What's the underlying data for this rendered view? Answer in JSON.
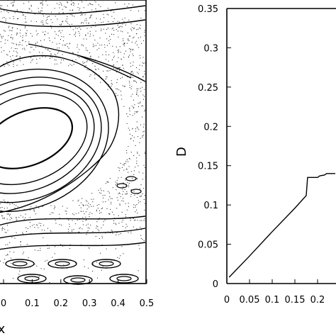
{
  "chart_data": [
    {
      "type": "scatter",
      "title": "",
      "xlabel": "x",
      "ylabel": "",
      "x_ticks": [
        "0",
        "0.1",
        "0.2",
        "0.3",
        "0.4",
        "0.5"
      ],
      "xlim": [
        0,
        0.5
      ],
      "description_kind": "phase-space",
      "grid": false
    },
    {
      "type": "line",
      "title": "",
      "xlabel": "",
      "ylabel": "D",
      "xlim": [
        0,
        0.25
      ],
      "ylim": [
        0,
        0.35
      ],
      "x_ticks": [
        "0",
        "0.05",
        "0.1",
        "0.15",
        "0.2"
      ],
      "y_ticks": [
        "0",
        "0.05",
        "0.1",
        "0.15",
        "0.2",
        "0.25",
        "0.3",
        "0.35"
      ],
      "grid": false,
      "series": [
        {
          "x": [
            0.005,
            0.05,
            0.1,
            0.15,
            0.175,
            0.178,
            0.2,
            0.205,
            0.215,
            0.22,
            0.25
          ],
          "y": [
            0.008,
            0.035,
            0.066,
            0.096,
            0.112,
            0.135,
            0.135,
            0.137,
            0.138,
            0.14,
            0.14
          ]
        }
      ]
    }
  ]
}
